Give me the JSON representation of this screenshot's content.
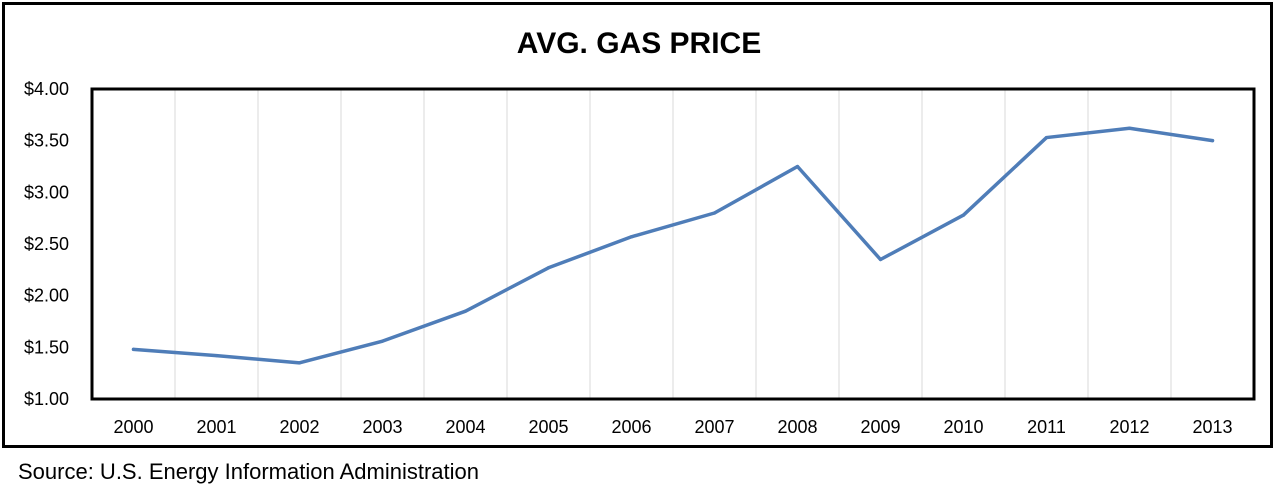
{
  "source_note": "Source: U.S. Energy Information Administration",
  "chart_data": {
    "type": "line",
    "title": "AVG. GAS PRICE",
    "xlabel": "",
    "ylabel": "",
    "categories": [
      "2000",
      "2001",
      "2002",
      "2003",
      "2004",
      "2005",
      "2006",
      "2007",
      "2008",
      "2009",
      "2010",
      "2011",
      "2012",
      "2013"
    ],
    "series": [
      {
        "values": [
          1.48,
          1.42,
          1.35,
          1.56,
          1.85,
          2.27,
          2.57,
          2.8,
          3.25,
          2.35,
          2.78,
          3.53,
          3.62,
          3.5
        ]
      }
    ],
    "ylim": [
      1.0,
      4.0
    ],
    "y_ticks": [
      "$1.00",
      "$1.50",
      "$2.00",
      "$2.50",
      "$3.00",
      "$3.50",
      "$4.00"
    ],
    "y_tick_values": [
      1.0,
      1.5,
      2.0,
      2.5,
      3.0,
      3.5,
      4.0
    ],
    "grid": "vertical",
    "line_color": "#4F7DB8",
    "grid_color": "#D9D9D9",
    "legend": "none"
  }
}
